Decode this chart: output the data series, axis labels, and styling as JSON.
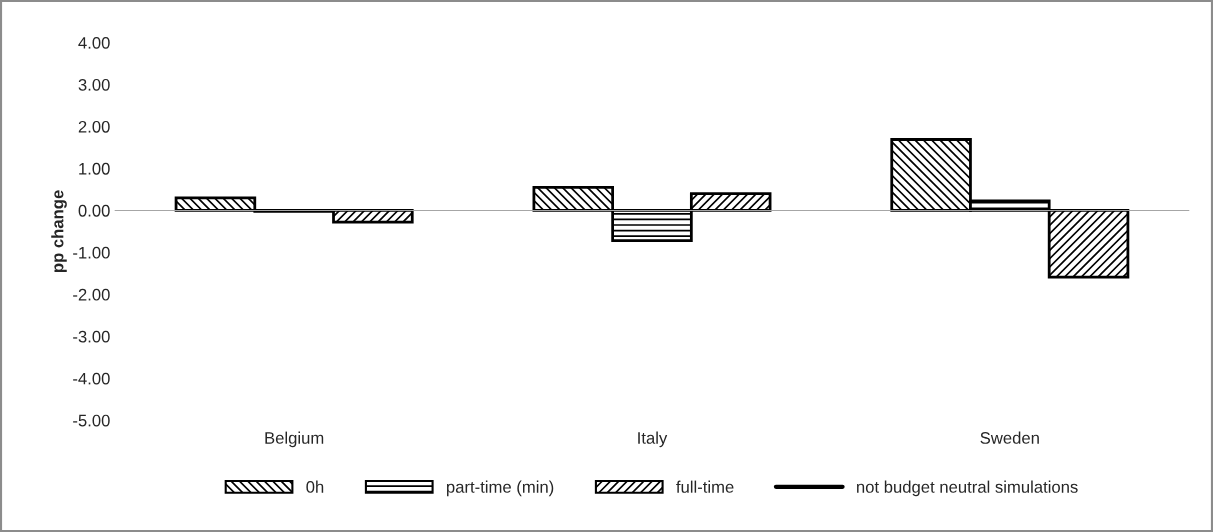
{
  "chart_data": {
    "type": "bar",
    "ylabel": "pp change",
    "categories": [
      "Belgium",
      "Italy",
      "Sweden"
    ],
    "series": [
      {
        "name": "0h",
        "color": "#000000",
        "values": [
          0.3,
          0.55,
          1.69
        ]
      },
      {
        "name": "part-time (min)",
        "color": "#000000",
        "values": [
          -0.02,
          -0.72,
          0.23
        ]
      },
      {
        "name": "full-time",
        "color": "#000000",
        "values": [
          -0.28,
          0.4,
          -1.59
        ]
      },
      {
        "name": "not budget neutral simulations",
        "type": "line",
        "color": "#000000",
        "values": [
          null,
          null,
          null
        ]
      }
    ],
    "ylim": [
      -5,
      4
    ],
    "yticks": [
      {
        "value": -5,
        "label": "-5.00"
      },
      {
        "value": -4,
        "label": "-4.00"
      },
      {
        "value": -3,
        "label": "-3.00"
      },
      {
        "value": -2,
        "label": "-2.00"
      },
      {
        "value": -1,
        "label": "-1.00"
      },
      {
        "value": 0,
        "label": "0.00"
      },
      {
        "value": 1,
        "label": "1.00"
      },
      {
        "value": 2,
        "label": "2.00"
      },
      {
        "value": 3,
        "label": "3.00"
      },
      {
        "value": 4,
        "label": "4.00"
      }
    ],
    "legend": "bottom"
  }
}
